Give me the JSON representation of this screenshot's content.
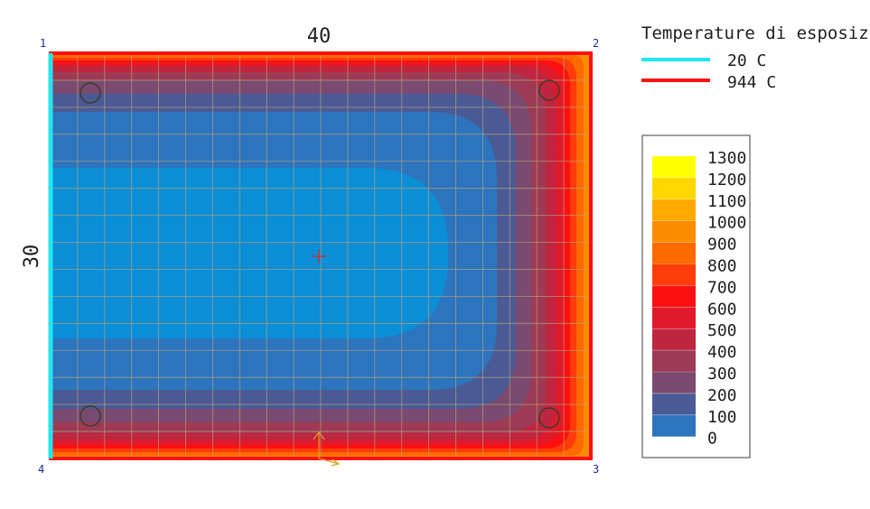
{
  "section": {
    "width_label": "40",
    "height_label": "30",
    "corners": [
      "1",
      "2",
      "3",
      "4"
    ]
  },
  "exposure": {
    "title": "Temperature di esposizione",
    "entries": [
      {
        "label": "20  C",
        "color": "#22e6f0"
      },
      {
        "label": "944  C",
        "color": "#ff1010"
      }
    ]
  },
  "scale": {
    "values": [
      "1300",
      "1200",
      "1100",
      "1000",
      "900",
      "800",
      "700",
      "600",
      "500",
      "400",
      "300",
      "200",
      "100",
      "0"
    ],
    "colors": [
      "#ffff00",
      "#ffd700",
      "#ffaa00",
      "#ff8c00",
      "#ff6a00",
      "#ff3c0a",
      "#ff1010",
      "#e01a2a",
      "#c0253f",
      "#9e3a55",
      "#7a4a70",
      "#4a5a95",
      "#2c74bd",
      "#0b8ed6"
    ]
  },
  "colors": {
    "grid": "#b4a078",
    "outline": "#ff1010",
    "cold_edge": "#22e6f0",
    "corner_label": "#1a2aa0",
    "center_mark": "#e02020",
    "arrow": "#e0a020"
  }
}
